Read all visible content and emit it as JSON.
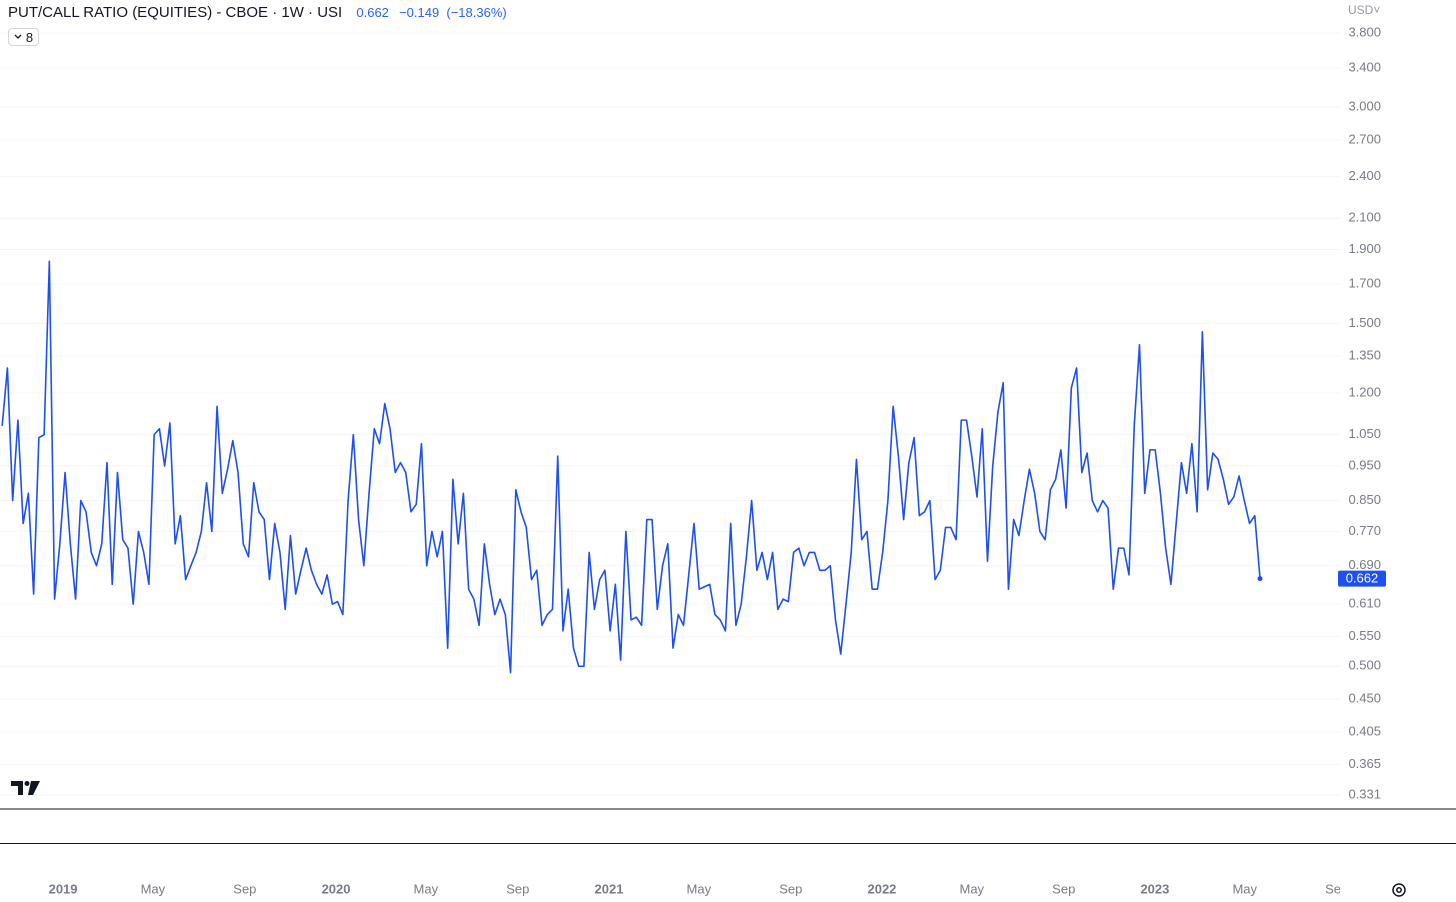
{
  "chart_data": {
    "type": "line",
    "title": "PUT/CALL RATIO (EQUITIES) - CBOE · 1W · USI",
    "change": "−0.149",
    "change_percent": "(−18.36%)",
    "currency": "USD",
    "indicator_count": "8",
    "log_scale": true,
    "grid": true,
    "xlim": [
      2018.769,
      2023.678
    ],
    "ylim": [
      0.3175,
      4.226
    ],
    "xticks": [
      2019,
      {
        "value": 2019.329,
        "label": "May"
      },
      {
        "value": 2019.666,
        "label": "Sep"
      },
      2020,
      {
        "value": 2020.329,
        "label": "May"
      },
      {
        "value": 2020.666,
        "label": "Sep"
      },
      2021,
      {
        "value": 2021.329,
        "label": "May"
      },
      {
        "value": 2021.666,
        "label": "Sep"
      },
      2022,
      {
        "value": 2022.329,
        "label": "May"
      },
      {
        "value": 2022.666,
        "label": "Sep"
      },
      2023,
      {
        "value": 2023.329,
        "label": "May"
      },
      {
        "value": 2023.666,
        "label": "Sep"
      }
    ],
    "yticks": [
      {
        "value": 3.8,
        "label": "3.800"
      },
      {
        "value": 3.4,
        "label": "3.400"
      },
      {
        "value": 3.0,
        "label": "3.000"
      },
      {
        "value": 2.7,
        "label": "2.700"
      },
      {
        "value": 2.4,
        "label": "2.400"
      },
      {
        "value": 2.1,
        "label": "2.100"
      },
      {
        "value": 1.9,
        "label": "1.900"
      },
      {
        "value": 1.7,
        "label": "1.700"
      },
      {
        "value": 1.5,
        "label": "1.500"
      },
      {
        "value": 1.35,
        "label": "1.350"
      },
      {
        "value": 1.2,
        "label": "1.200"
      },
      {
        "value": 1.05,
        "label": "1.050"
      },
      {
        "value": 0.95,
        "label": "0.950"
      },
      {
        "value": 0.85,
        "label": "0.850"
      },
      {
        "value": 0.77,
        "label": "0.770"
      },
      {
        "value": 0.69,
        "label": "0.690"
      },
      {
        "value": 0.61,
        "label": "0.610"
      },
      {
        "value": 0.55,
        "label": "0.550"
      },
      {
        "value": 0.5,
        "label": "0.500"
      },
      {
        "value": 0.45,
        "label": "0.450"
      },
      {
        "value": 0.405,
        "label": "0.405"
      },
      {
        "value": 0.365,
        "label": "0.365"
      },
      {
        "value": 0.331,
        "label": "0.331"
      }
    ],
    "x": [
      2018.777,
      2018.7962,
      2018.8154,
      2018.8346,
      2018.8538,
      2018.873,
      2018.8922,
      2018.9114,
      2018.9306,
      2018.9498,
      2018.969,
      2018.9882,
      2019.0074,
      2019.0266,
      2019.0458,
      2019.065,
      2019.0842,
      2019.1034,
      2019.1226,
      2019.1418,
      2019.161,
      2019.1802,
      2019.1994,
      2019.2186,
      2019.2378,
      2019.257,
      2019.2762,
      2019.2954,
      2019.3146,
      2019.3338,
      2019.353,
      2019.3722,
      2019.3914,
      2019.4106,
      2019.4298,
      2019.449,
      2019.4682,
      2019.4874,
      2019.5066,
      2019.5258,
      2019.545,
      2019.5642,
      2019.5834,
      2019.6026,
      2019.6218,
      2019.641,
      2019.6602,
      2019.6794,
      2019.6986,
      2019.7178,
      2019.737,
      2019.7562,
      2019.7754,
      2019.7946,
      2019.8138,
      2019.833,
      2019.8522,
      2019.8714,
      2019.8906,
      2019.9098,
      2019.929,
      2019.9482,
      2019.9674,
      2019.9866,
      2020.0058,
      2020.025,
      2020.0442,
      2020.0634,
      2020.0826,
      2020.1018,
      2020.121,
      2020.1402,
      2020.1594,
      2020.1786,
      2020.1978,
      2020.217,
      2020.2362,
      2020.2554,
      2020.2746,
      2020.2938,
      2020.313,
      2020.3322,
      2020.3514,
      2020.3706,
      2020.3898,
      2020.409,
      2020.4282,
      2020.4474,
      2020.4666,
      2020.4858,
      2020.505,
      2020.5242,
      2020.5434,
      2020.5626,
      2020.5818,
      2020.601,
      2020.6202,
      2020.6394,
      2020.6586,
      2020.6778,
      2020.697,
      2020.7162,
      2020.7354,
      2020.7546,
      2020.7738,
      2020.793,
      2020.8122,
      2020.8314,
      2020.8506,
      2020.8698,
      2020.889,
      2020.9082,
      2020.9274,
      2020.9466,
      2020.9658,
      2020.985,
      2021.0042,
      2021.0234,
      2021.0426,
      2021.0618,
      2021.081,
      2021.1002,
      2021.1194,
      2021.1386,
      2021.1578,
      2021.177,
      2021.1962,
      2021.2154,
      2021.2346,
      2021.2538,
      2021.273,
      2021.2922,
      2021.3114,
      2021.3306,
      2021.3498,
      2021.369,
      2021.3882,
      2021.4074,
      2021.4266,
      2021.4458,
      2021.465,
      2021.4842,
      2021.5034,
      2021.5226,
      2021.5418,
      2021.561,
      2021.5802,
      2021.5994,
      2021.6186,
      2021.6378,
      2021.657,
      2021.6762,
      2021.6954,
      2021.7146,
      2021.7338,
      2021.753,
      2021.7722,
      2021.7914,
      2021.8106,
      2021.8298,
      2021.849,
      2021.8682,
      2021.8874,
      2021.9066,
      2021.9258,
      2021.945,
      2021.9642,
      2021.9834,
      2022.0026,
      2022.0218,
      2022.041,
      2022.0602,
      2022.0794,
      2022.0986,
      2022.1178,
      2022.137,
      2022.1562,
      2022.1754,
      2022.1946,
      2022.2138,
      2022.233,
      2022.2522,
      2022.2714,
      2022.2906,
      2022.3098,
      2022.329,
      2022.3482,
      2022.3674,
      2022.3866,
      2022.4058,
      2022.425,
      2022.4442,
      2022.4634,
      2022.4826,
      2022.5018,
      2022.521,
      2022.5402,
      2022.5594,
      2022.5786,
      2022.5978,
      2022.617,
      2022.6362,
      2022.6554,
      2022.6746,
      2022.6938,
      2022.713,
      2022.7322,
      2022.7514,
      2022.7706,
      2022.7898,
      2022.809,
      2022.8282,
      2022.8474,
      2022.8666,
      2022.8858,
      2022.905,
      2022.9242,
      2022.9434,
      2022.9626,
      2022.9818,
      2023.001,
      2023.0202,
      2023.0394,
      2023.0586,
      2023.0778,
      2023.097,
      2023.1162,
      2023.1354,
      2023.1546,
      2023.1738,
      2023.193,
      2023.2122,
      2023.2314,
      2023.2506,
      2023.2698,
      2023.289,
      2023.3082,
      2023.3274,
      2023.3466,
      2023.3658,
      2023.385
    ],
    "series": [
      {
        "color": "#1e4ff0",
        "values": [
          1.08,
          1.3,
          0.85,
          1.1,
          0.79,
          0.87,
          0.63,
          1.04,
          1.05,
          1.83,
          0.62,
          0.74,
          0.93,
          0.74,
          0.62,
          0.85,
          0.82,
          0.72,
          0.69,
          0.74,
          0.96,
          0.65,
          0.93,
          0.75,
          0.73,
          0.61,
          0.77,
          0.72,
          0.65,
          1.05,
          1.07,
          0.95,
          1.09,
          0.74,
          0.81,
          0.66,
          0.69,
          0.72,
          0.77,
          0.9,
          0.77,
          1.15,
          0.87,
          0.94,
          1.03,
          0.93,
          0.74,
          0.71,
          0.9,
          0.82,
          0.8,
          0.66,
          0.79,
          0.72,
          0.6,
          0.76,
          0.63,
          0.68,
          0.73,
          0.68,
          0.65,
          0.63,
          0.67,
          0.61,
          0.615,
          0.59,
          0.85,
          1.05,
          0.8,
          0.69,
          0.87,
          1.07,
          1.02,
          1.16,
          1.07,
          0.93,
          0.96,
          0.93,
          0.82,
          0.84,
          1.02,
          0.69,
          0.77,
          0.71,
          0.77,
          0.53,
          0.91,
          0.74,
          0.87,
          0.64,
          0.62,
          0.57,
          0.74,
          0.65,
          0.59,
          0.62,
          0.59,
          0.49,
          0.88,
          0.82,
          0.78,
          0.66,
          0.68,
          0.57,
          0.59,
          0.6,
          0.98,
          0.56,
          0.64,
          0.53,
          0.5,
          0.5,
          0.72,
          0.6,
          0.66,
          0.68,
          0.56,
          0.65,
          0.51,
          0.77,
          0.58,
          0.585,
          0.57,
          0.8,
          0.8,
          0.6,
          0.69,
          0.74,
          0.53,
          0.59,
          0.57,
          0.67,
          0.79,
          0.64,
          0.645,
          0.65,
          0.59,
          0.58,
          0.56,
          0.79,
          0.57,
          0.61,
          0.71,
          0.85,
          0.68,
          0.72,
          0.66,
          0.72,
          0.6,
          0.62,
          0.615,
          0.72,
          0.73,
          0.69,
          0.72,
          0.72,
          0.68,
          0.68,
          0.69,
          0.58,
          0.52,
          0.61,
          0.72,
          0.97,
          0.75,
          0.77,
          0.64,
          0.64,
          0.72,
          0.85,
          1.15,
          0.98,
          0.8,
          0.96,
          1.04,
          0.81,
          0.82,
          0.85,
          0.66,
          0.68,
          0.78,
          0.78,
          0.75,
          1.1,
          1.1,
          0.98,
          0.86,
          1.07,
          0.7,
          0.95,
          1.13,
          1.24,
          0.64,
          0.8,
          0.76,
          0.85,
          0.94,
          0.87,
          0.77,
          0.75,
          0.88,
          0.91,
          1.0,
          0.83,
          1.22,
          1.3,
          0.93,
          0.99,
          0.85,
          0.82,
          0.85,
          0.83,
          0.64,
          0.73,
          0.73,
          0.67,
          1.08,
          1.4,
          0.87,
          1.0,
          1.0,
          0.87,
          0.73,
          0.65,
          0.79,
          0.96,
          0.87,
          1.02,
          0.82,
          1.46,
          0.88,
          0.99,
          0.97,
          0.91,
          0.84,
          0.86,
          0.92,
          0.85,
          0.79,
          0.81,
          0.662
        ]
      }
    ]
  }
}
